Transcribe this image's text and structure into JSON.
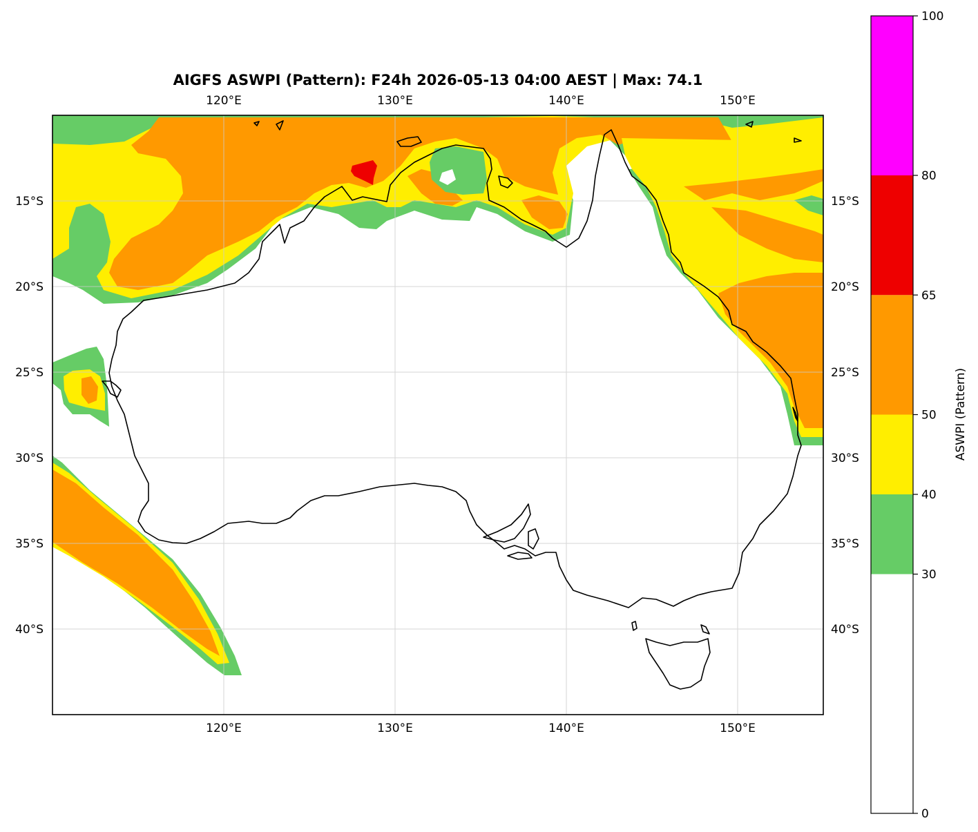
{
  "title": "AIGFS ASWPI (Pattern): F24h 2026-05-13 04:00 AEST | Max: 74.1",
  "map": {
    "lon_range": [
      110,
      155
    ],
    "lat_range": [
      -45,
      -10
    ],
    "lon_ticks": [
      {
        "value": 120,
        "label": "120°E"
      },
      {
        "value": 130,
        "label": "130°E"
      },
      {
        "value": 140,
        "label": "140°E"
      },
      {
        "value": 150,
        "label": "150°E"
      }
    ],
    "lat_ticks": [
      {
        "value": -15,
        "label": "15°S"
      },
      {
        "value": -20,
        "label": "20°S"
      },
      {
        "value": -25,
        "label": "25°S"
      },
      {
        "value": -30,
        "label": "30°S"
      },
      {
        "value": -35,
        "label": "35°S"
      },
      {
        "value": -40,
        "label": "40°S"
      }
    ],
    "gridlines": true,
    "coastline_color": "#000000"
  },
  "colorbar": {
    "label": "ASWPI (Pattern)",
    "range": [
      0,
      100
    ],
    "bands": [
      {
        "from": 0,
        "to": 30,
        "color": "#ffffff"
      },
      {
        "from": 30,
        "to": 40,
        "color": "#66cc66"
      },
      {
        "from": 40,
        "to": 50,
        "color": "#ffee00"
      },
      {
        "from": 50,
        "to": 65,
        "color": "#ff9900"
      },
      {
        "from": 65,
        "to": 80,
        "color": "#ee0000"
      },
      {
        "from": 80,
        "to": 100,
        "color": "#ff00ff"
      }
    ],
    "ticks": [
      {
        "value": 0,
        "label": "0"
      },
      {
        "value": 30,
        "label": "30"
      },
      {
        "value": 40,
        "label": "40"
      },
      {
        "value": 50,
        "label": "50"
      },
      {
        "value": 65,
        "label": "65"
      },
      {
        "value": 80,
        "label": "80"
      },
      {
        "value": 100,
        "label": "100"
      }
    ]
  },
  "colors": {
    "green": "#66cc66",
    "yellow": "#ffee00",
    "orange": "#ff9900",
    "red": "#ee0000",
    "magenta": "#ff00ff"
  }
}
